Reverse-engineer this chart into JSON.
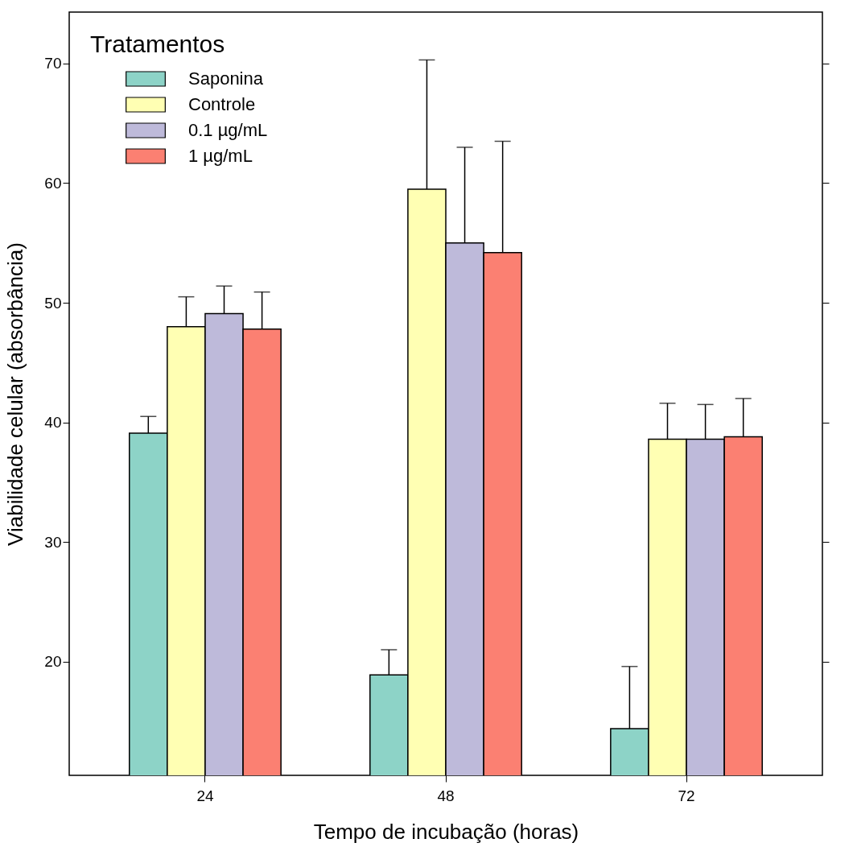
{
  "chart_data": {
    "type": "bar",
    "xlabel": "Tempo de incubação (horas)",
    "ylabel": "Viabilidade celular (absorbância)",
    "legend_title": "Tratamentos",
    "legend": "top left",
    "grid": false,
    "categories": [
      "24",
      "48",
      "72"
    ],
    "ylim": [
      10.5,
      74.3
    ],
    "yticks": [
      20,
      30,
      40,
      50,
      60,
      70
    ],
    "series": [
      {
        "name": "Saponina",
        "color": "#8dd3c7",
        "values": [
          39.1,
          18.9,
          14.4
        ],
        "errors": [
          [
            39.1,
            40.5
          ],
          [
            18.9,
            21.0
          ],
          [
            14.4,
            19.6
          ]
        ]
      },
      {
        "name": "Controle",
        "color": "#ffffb3",
        "values": [
          48.0,
          59.5,
          38.6
        ],
        "errors": [
          [
            48.0,
            50.5
          ],
          [
            59.5,
            70.3
          ],
          [
            38.6,
            41.6
          ]
        ]
      },
      {
        "name": "0.1 µg/mL",
        "color": "#bebada",
        "values": [
          49.1,
          55.0,
          38.6
        ],
        "errors": [
          [
            49.1,
            51.4
          ],
          [
            55.0,
            63.0
          ],
          [
            38.6,
            41.5
          ]
        ]
      },
      {
        "name": "1 µg/mL",
        "color": "#fb8072",
        "values": [
          47.8,
          54.2,
          38.8
        ],
        "errors": [
          [
            47.8,
            50.9
          ],
          [
            54.2,
            63.5
          ],
          [
            38.8,
            42.0
          ]
        ]
      }
    ]
  }
}
